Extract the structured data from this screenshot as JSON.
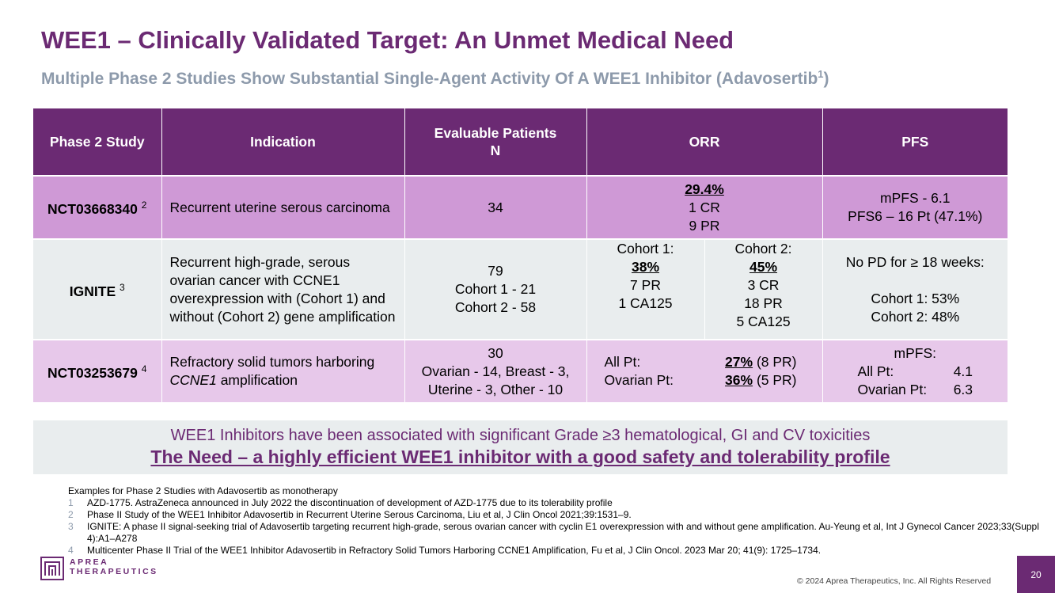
{
  "slide": {
    "title": "WEE1 – Clinically Validated Target: An Unmet Medical Need",
    "subtitle_text": "Multiple Phase 2 Studies Show Substantial Single-Agent Activity Of A WEE1 Inhibitor (Adavosertib",
    "subtitle_sup": "1",
    "subtitle_close": ")",
    "page_number": "20"
  },
  "table": {
    "headers": {
      "study": "Phase 2 Study",
      "indication": "Indication",
      "patients_l1": "Evaluable Patients",
      "patients_l2": "N",
      "orr": "ORR",
      "pfs": "PFS"
    },
    "rows": [
      {
        "study": "NCT03668340",
        "study_sup": "2",
        "indication": "Recurrent uterine serous carcinoma",
        "patients": "34",
        "orr_rate": "29.4%",
        "orr_l2": "1 CR",
        "orr_l3": "9 PR",
        "pfs_l1": "mPFS - 6.1",
        "pfs_l2": "PFS6 – 16 Pt (47.1%)"
      },
      {
        "study": "IGNITE",
        "study_sup": "3",
        "indication": "Recurrent high-grade, serous ovarian cancer with CCNE1 overexpression with (Cohort 1) and without (Cohort 2) gene amplification",
        "patients_l1": "79",
        "patients_l2": "Cohort 1 - 21",
        "patients_l3": "Cohort 2 - 58",
        "c1_label": "Cohort 1:",
        "c1_rate": "38%",
        "c1_l3": "7 PR",
        "c1_l4": "1 CA125",
        "c2_label": "Cohort 2:",
        "c2_rate": "45%",
        "c2_l3": "3 CR",
        "c2_l4": "18 PR",
        "c2_l5": "5 CA125",
        "pfs_l1": "No PD for ≥ 18 weeks:",
        "pfs_l2": "Cohort 1: 53%",
        "pfs_l3": "Cohort 2: 48%"
      },
      {
        "study": "NCT03253679",
        "study_sup": "4",
        "indication_pre": "Refractory solid tumors harboring ",
        "indication_em": "CCNE1",
        "indication_post": " amplification",
        "patients_l1": "30",
        "patients_l2": "Ovarian - 14, Breast - 3,",
        "patients_l3": "Uterine - 3, Other - 10",
        "orr_a_label": "All Pt:",
        "orr_a_rate": "27%",
        "orr_a_detail": " (8 PR)",
        "orr_b_label": "Ovarian Pt:",
        "orr_b_rate": "36%",
        "orr_b_detail": " (5 PR)",
        "pfs_l1": "mPFS:",
        "pfs_a_label": "All Pt:",
        "pfs_a_value": "4.1",
        "pfs_b_label": "Ovarian Pt:",
        "pfs_b_value": "6.3"
      }
    ]
  },
  "need": {
    "line1": "WEE1 Inhibitors have been associated with significant Grade ≥3 hematological, GI and CV toxicities",
    "line2": "The Need – a highly efficient WEE1 inhibitor with a good safety and tolerability profile"
  },
  "footnotes": {
    "heading": "Examples for Phase 2 Studies with Adavosertib as monotherapy",
    "items": [
      {
        "num": "1",
        "text": "AZD-1775. AstraZeneca announced in July 2022 the discontinuation of development of AZD-1775 due to its tolerability profile"
      },
      {
        "num": "2",
        "text": " Phase II Study of the WEE1 Inhibitor Adavosertib in Recurrent Uterine Serous Carcinoma, Liu et al, J Clin Oncol 2021;39:1531–9."
      },
      {
        "num": "3",
        "text": "IGNITE: A phase II signal-seeking trial of Adavosertib targeting recurrent high-grade, serous ovarian cancer with cyclin E1 overexpression with and without gene amplification. Au-Yeung et al, Int J Gynecol Cancer 2023;33(Suppl 4):A1–A278"
      },
      {
        "num": "4",
        "text": "Multicenter Phase II Trial of the WEE1 Inhibitor Adavosertib in Refractory Solid Tumors Harboring CCNE1 Amplification, Fu et al, J Clin Oncol. 2023 Mar 20; 41(9): 1725–1734."
      }
    ]
  },
  "footer": {
    "logo_l1": "APREA",
    "logo_l2": "THERAPEUTICS",
    "copyright": "© 2024 Aprea Therapeutics, Inc. All Rights Reserved"
  },
  "colors": {
    "brand_purple": "#6b2a73",
    "subtitle_gray": "#8d9aab",
    "row1_bg": "#cf99d6",
    "row2_bg": "#e9edee",
    "row3_bg": "#e7c8ea"
  }
}
